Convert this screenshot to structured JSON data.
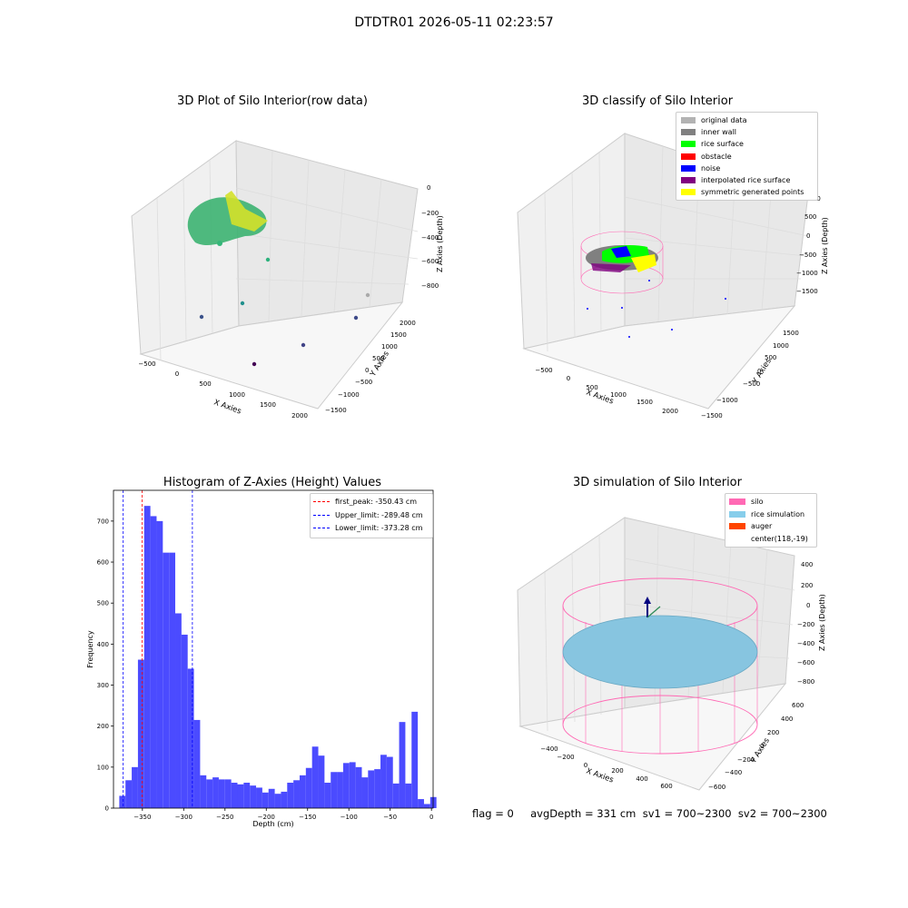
{
  "suptitle": "DTDTR01 2026-05-11 02:23:57",
  "footer": "flag = 0     avgDepth = 331 cm  sv1 = 700~2300  sv2 = 700~2300",
  "colors": {
    "hist_bar": "#4b4bff",
    "peak_line": "#ff0000",
    "limit_line": "#0000ff",
    "silo_wire": "#ff69b4",
    "rice_sim": "#87c5e0",
    "auger": "#ff4500",
    "grid_pane": "#f2f2f2"
  },
  "panels": {
    "raw": {
      "title": "3D Plot of Silo Interior(row data)",
      "xlabel": "X Axies",
      "ylabel": "Y Axies",
      "zlabel": "Z Axies (Depth)",
      "xticks": [
        "−500",
        "0",
        "500",
        "1000",
        "1500",
        "2000"
      ],
      "yticks": [
        "2000",
        "1500",
        "1000",
        "500",
        "0",
        "−500",
        "−1000",
        "−1500"
      ],
      "zticks": [
        "0",
        "−200",
        "−400",
        "−600",
        "−800"
      ]
    },
    "classify": {
      "title": "3D classify of Silo Interior",
      "xlabel": "X Axies",
      "ylabel": "Y Axies",
      "zlabel": "Z Axies (Depth)",
      "xticks": [
        "−500",
        "0",
        "500",
        "1000",
        "1500",
        "2000"
      ],
      "yticks": [
        "1500",
        "1000",
        "500",
        "0",
        "−500",
        "−1000",
        "−1500"
      ],
      "zticks": [
        "1000",
        "500",
        "0",
        "−500",
        "−1000",
        "−1500"
      ],
      "legend": [
        {
          "label": "original data",
          "color": "#b3b3b3"
        },
        {
          "label": "inner wall",
          "color": "#808080"
        },
        {
          "label": "rice surface",
          "color": "#00ff00"
        },
        {
          "label": "obstacle",
          "color": "#ff0000"
        },
        {
          "label": "noise",
          "color": "#0000ff"
        },
        {
          "label": "interpolated rice surface",
          "color": "#800080"
        },
        {
          "label": "symmetric generated points",
          "color": "#ffff00"
        }
      ]
    },
    "simulation": {
      "title": "3D simulation of Silo Interior",
      "xlabel": "X Axies",
      "ylabel": "Y Axies",
      "zlabel": "Z Axies (Depth)",
      "xticks": [
        "−400",
        "−200",
        "0",
        "200",
        "400",
        "600"
      ],
      "yticks": [
        "600",
        "400",
        "200",
        "0",
        "−200",
        "−400",
        "−600"
      ],
      "zticks": [
        "400",
        "200",
        "0",
        "−200",
        "−400",
        "−600",
        "−800"
      ],
      "legend": [
        {
          "label": "silo",
          "color": "#ff69b4"
        },
        {
          "label": "rice simulation",
          "color": "#87ceeb"
        },
        {
          "label": "auger",
          "color": "#ff4500"
        },
        {
          "label": "center(118,-19)",
          "color": ""
        }
      ]
    }
  },
  "chart_data": {
    "type": "bar",
    "title": "Histogram of Z-Axies (Height) Values",
    "xlabel": "Depth (cm)",
    "ylabel": "Frequency",
    "xlim": [
      -385,
      2
    ],
    "ylim": [
      0,
      775
    ],
    "xticks": [
      -350,
      -300,
      -250,
      -200,
      -150,
      -100,
      -50,
      0
    ],
    "xtick_labels": [
      "−350",
      "−300",
      "−250",
      "−200",
      "−150",
      "−100",
      "−50",
      "0"
    ],
    "yticks": [
      0,
      100,
      200,
      300,
      400,
      500,
      600,
      700
    ],
    "bin_edges_start": -378,
    "bin_width": 7.53,
    "values": [
      30,
      68,
      100,
      362,
      737,
      712,
      700,
      623,
      623,
      475,
      423,
      340,
      215,
      80,
      70,
      75,
      70,
      70,
      62,
      58,
      62,
      55,
      50,
      38,
      47,
      35,
      40,
      62,
      68,
      80,
      98,
      150,
      128,
      62,
      88,
      88,
      110,
      112,
      100,
      75,
      92,
      95,
      130,
      125,
      60,
      210,
      60,
      235,
      22,
      10,
      27
    ],
    "vlines": [
      {
        "label": "first_peak: -350.43 cm",
        "x": -350.43,
        "color": "#ff0000"
      },
      {
        "label": "Upper_limit: -289.48 cm",
        "x": -289.48,
        "color": "#0000ff"
      },
      {
        "label": "Lower_limit: -373.28 cm",
        "x": -373.28,
        "color": "#0000ff"
      }
    ],
    "legend_position": "upper right"
  }
}
